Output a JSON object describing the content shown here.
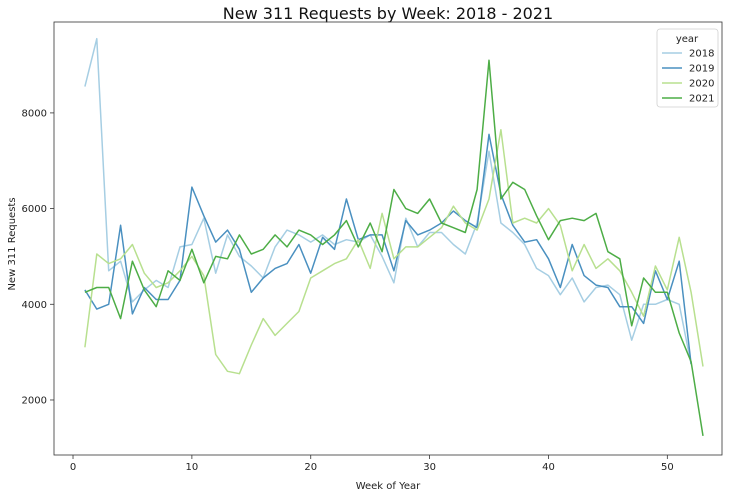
{
  "chart_data": {
    "type": "line",
    "title": "New 311 Requests by Week: 2018 - 2021",
    "xlabel": "Week of Year",
    "ylabel": "New 311 Requests",
    "xlim": [
      -1.6,
      54.6
    ],
    "ylim": [
      850,
      9900
    ],
    "xticks": [
      0,
      10,
      20,
      30,
      40,
      50
    ],
    "yticks": [
      2000,
      4000,
      6000,
      8000
    ],
    "grid": false,
    "legend": {
      "title": "year",
      "position": "top-right"
    },
    "series": [
      {
        "name": "2018",
        "color": "#a6cee3",
        "x": [
          1,
          2,
          3,
          4,
          5,
          6,
          7,
          8,
          9,
          10,
          11,
          12,
          13,
          14,
          15,
          16,
          17,
          18,
          19,
          20,
          21,
          22,
          23,
          24,
          25,
          26,
          27,
          28,
          29,
          30,
          31,
          32,
          33,
          34,
          35,
          36,
          37,
          38,
          39,
          40,
          41,
          42,
          43,
          44,
          45,
          46,
          47,
          48,
          49,
          50,
          51,
          52
        ],
        "values": [
          8550,
          9550,
          4700,
          4900,
          4050,
          4300,
          4500,
          4350,
          5200,
          5250,
          5800,
          4650,
          5450,
          5000,
          4800,
          4550,
          5200,
          5550,
          5450,
          5300,
          5450,
          5250,
          5350,
          5300,
          5450,
          5000,
          4450,
          5800,
          5200,
          5500,
          5500,
          5250,
          5050,
          5700,
          7200,
          5700,
          5500,
          5250,
          4750,
          4600,
          4200,
          4550,
          4050,
          4350,
          4400,
          4200,
          3250,
          4000,
          4000,
          4100,
          4000,
          2750
        ]
      },
      {
        "name": "2019",
        "color": "#4a90c0",
        "x": [
          1,
          2,
          3,
          4,
          5,
          6,
          7,
          8,
          9,
          10,
          11,
          12,
          13,
          14,
          15,
          16,
          17,
          18,
          19,
          20,
          21,
          22,
          23,
          24,
          25,
          26,
          27,
          28,
          29,
          30,
          31,
          32,
          33,
          34,
          35,
          36,
          37,
          38,
          39,
          40,
          41,
          42,
          43,
          44,
          45,
          46,
          47,
          48,
          49,
          50,
          51,
          52
        ],
        "values": [
          4300,
          3900,
          4000,
          5650,
          3800,
          4350,
          4100,
          4100,
          4500,
          6450,
          5850,
          5300,
          5550,
          5150,
          4250,
          4550,
          4750,
          4850,
          5250,
          4650,
          5400,
          5150,
          6200,
          5350,
          5450,
          5450,
          4700,
          5750,
          5450,
          5550,
          5700,
          5950,
          5750,
          5600,
          7550,
          6300,
          5650,
          5300,
          5350,
          4950,
          4350,
          5250,
          4600,
          4400,
          4350,
          3950,
          3950,
          3600,
          4700,
          4100,
          4900,
          2750
        ]
      },
      {
        "name": "2020",
        "color": "#b8e08f",
        "x": [
          1,
          2,
          3,
          4,
          5,
          6,
          7,
          8,
          9,
          10,
          11,
          12,
          13,
          14,
          15,
          16,
          17,
          18,
          19,
          20,
          21,
          22,
          23,
          24,
          25,
          26,
          27,
          28,
          29,
          30,
          31,
          32,
          33,
          34,
          35,
          36,
          37,
          38,
          39,
          40,
          41,
          42,
          43,
          44,
          45,
          46,
          47,
          48,
          49,
          50,
          51,
          52,
          53
        ],
        "values": [
          3100,
          5050,
          4850,
          4950,
          5250,
          4650,
          4350,
          4450,
          4700,
          5000,
          4600,
          2950,
          2600,
          2550,
          3150,
          3700,
          3350,
          3600,
          3850,
          4550,
          4700,
          4850,
          4950,
          5350,
          4750,
          5900,
          4950,
          5200,
          5200,
          5400,
          5600,
          6050,
          5700,
          5550,
          6200,
          7650,
          5700,
          5800,
          5700,
          6000,
          5650,
          4700,
          5250,
          4750,
          4950,
          4700,
          4250,
          3750,
          4800,
          4300,
          5400,
          4250,
          2700
        ]
      },
      {
        "name": "2021",
        "color": "#4dad46",
        "x": [
          1,
          2,
          3,
          4,
          5,
          6,
          7,
          8,
          9,
          10,
          11,
          12,
          13,
          14,
          15,
          16,
          17,
          18,
          19,
          20,
          21,
          22,
          23,
          24,
          25,
          26,
          27,
          28,
          29,
          30,
          31,
          32,
          33,
          34,
          35,
          36,
          37,
          38,
          39,
          40,
          41,
          42,
          43,
          44,
          45,
          46,
          47,
          48,
          49,
          50,
          51,
          52,
          53
        ],
        "values": [
          4250,
          4350,
          4350,
          3700,
          4900,
          4300,
          3950,
          4700,
          4500,
          5150,
          4450,
          5000,
          4950,
          5450,
          5050,
          5150,
          5450,
          5200,
          5550,
          5450,
          5250,
          5450,
          5750,
          5200,
          5700,
          5100,
          6400,
          6000,
          5900,
          6200,
          5700,
          5600,
          5500,
          6400,
          9100,
          6200,
          6550,
          6400,
          5850,
          5350,
          5750,
          5800,
          5750,
          5900,
          5100,
          4950,
          3550,
          4550,
          4250,
          4250,
          3400,
          2800,
          1250
        ]
      }
    ]
  }
}
